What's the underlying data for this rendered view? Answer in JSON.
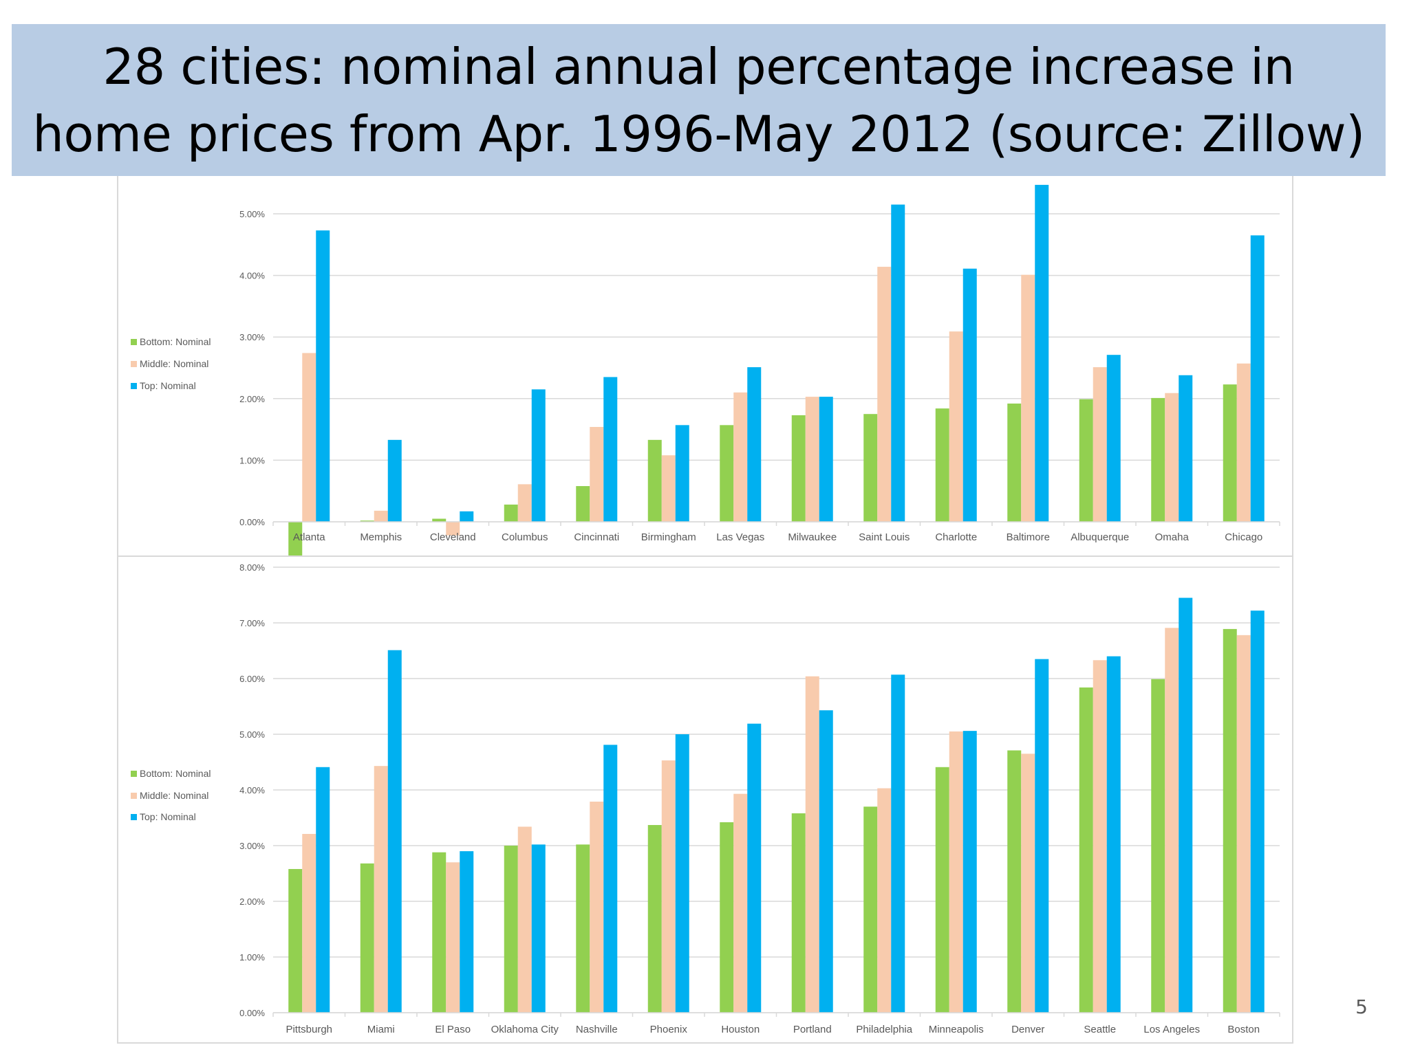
{
  "slide": {
    "title": "28 cities: nominal annual percentage increase in home prices from Apr. 1996-May 2012 (source: Zillow)",
    "page_number": "5"
  },
  "colors": {
    "banner": "#b8cce4",
    "bottom": "#92d050",
    "middle": "#f8cbad",
    "top": "#00b0f0",
    "gridline": "#d9d9d9",
    "axis_text": "#595959"
  },
  "chart_data": [
    {
      "type": "bar",
      "title": "",
      "xlabel": "",
      "ylabel": "",
      "ylim": [
        -0.55,
        5.5
      ],
      "yticks": [
        "0.00%",
        "1.00%",
        "2.00%",
        "3.00%",
        "4.00%",
        "5.00%"
      ],
      "grid": true,
      "legend_position": "left",
      "categories": [
        "Atlanta",
        "Memphis",
        "Cleveland",
        "Columbus",
        "Cincinnati",
        "Birmingham",
        "Las Vegas",
        "Milwaukee",
        "Saint Louis",
        "Charlotte",
        "Baltimore",
        "Albuquerque",
        "Omaha",
        "Chicago"
      ],
      "series": [
        {
          "name": "Bottom: Nominal",
          "color": "#92d050",
          "values": [
            -0.55,
            0.02,
            0.05,
            0.28,
            0.58,
            1.33,
            1.57,
            1.73,
            1.75,
            1.84,
            1.92,
            1.99,
            2.01,
            2.23
          ]
        },
        {
          "name": "Middle: Nominal",
          "color": "#f8cbad",
          "values": [
            2.74,
            0.18,
            -0.22,
            0.61,
            1.54,
            1.08,
            2.1,
            2.03,
            4.14,
            3.09,
            4.01,
            2.51,
            2.09,
            2.57
          ]
        },
        {
          "name": "Top: Nominal",
          "color": "#00b0f0",
          "values": [
            4.73,
            1.33,
            0.17,
            2.15,
            2.35,
            1.57,
            2.51,
            2.03,
            5.15,
            4.11,
            5.47,
            2.71,
            2.38,
            4.65
          ]
        }
      ]
    },
    {
      "type": "bar",
      "title": "",
      "xlabel": "",
      "ylabel": "",
      "ylim": [
        0,
        8
      ],
      "yticks": [
        "0.00%",
        "1.00%",
        "2.00%",
        "3.00%",
        "4.00%",
        "5.00%",
        "6.00%",
        "7.00%",
        "8.00%"
      ],
      "grid": true,
      "legend_position": "left",
      "categories": [
        "Pittsburgh",
        "Miami",
        "El Paso",
        "Oklahoma City",
        "Nashville",
        "Phoenix",
        "Houston",
        "Portland",
        "Philadelphia",
        "Minneapolis",
        "Denver",
        "Seattle",
        "Los Angeles",
        "Boston"
      ],
      "series": [
        {
          "name": "Bottom: Nominal",
          "color": "#92d050",
          "values": [
            2.58,
            2.68,
            2.88,
            3.0,
            3.02,
            3.37,
            3.42,
            3.58,
            3.7,
            4.41,
            4.71,
            5.84,
            5.99,
            6.89
          ]
        },
        {
          "name": "Middle: Nominal",
          "color": "#f8cbad",
          "values": [
            3.21,
            4.43,
            2.7,
            3.34,
            3.79,
            4.53,
            3.93,
            6.04,
            4.03,
            5.05,
            4.65,
            6.33,
            6.91,
            6.78
          ]
        },
        {
          "name": "Top: Nominal",
          "color": "#00b0f0",
          "values": [
            4.41,
            6.51,
            2.9,
            3.02,
            4.81,
            5.0,
            5.19,
            5.43,
            6.07,
            5.06,
            6.35,
            6.4,
            7.45,
            7.22
          ]
        }
      ]
    }
  ]
}
